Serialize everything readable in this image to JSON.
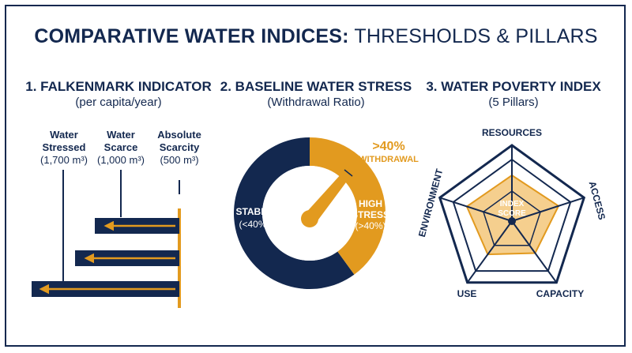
{
  "title": {
    "bold": "COMPARATIVE WATER INDICES:",
    "rest": "THRESHOLDS & PILLARS"
  },
  "falkenmark": {
    "heading": "1. FALKENMARK INDICATOR",
    "subheading": "(per capita/year)",
    "thresholds": [
      {
        "name_line1": "Water",
        "name_line2": "Stressed",
        "value": "(1,700 m³)",
        "m3": 1700
      },
      {
        "name_line1": "Water",
        "name_line2": "Scarce",
        "value": "(1,000 m³)",
        "m3": 1000
      },
      {
        "name_line1": "Absolute",
        "name_line2": "Scarcity",
        "value": "(500 m³)",
        "m3": 500
      }
    ]
  },
  "baseline_stress": {
    "heading": "2. BASELINE WATER STRESS",
    "subheading": "(Withdrawal Ratio)",
    "callout_line1": ">40%",
    "callout_line2": "WITHDRAWAL",
    "stable_label": "STABLE",
    "stable_value": "(<40%)",
    "high_label_line1": "HIGH",
    "high_label_line2": "STRESS",
    "high_value": "(>40%)",
    "high_stress_fraction": 0.4,
    "colors": {
      "stable": "#13284f",
      "high": "#e29a1f"
    }
  },
  "wpi": {
    "heading": "3. WATER POVERTY INDEX",
    "subheading": "(5 Pillars)",
    "pillars": [
      "RESOURCES",
      "ACCESS",
      "CAPACITY",
      "USE",
      "ENVIRONMENT"
    ],
    "center_label_line1": "INDEX",
    "center_label_line2": "SCORE"
  },
  "colors": {
    "navy": "#13284f",
    "gold": "#e29a1f",
    "gold_light": "#f3c77a"
  }
}
